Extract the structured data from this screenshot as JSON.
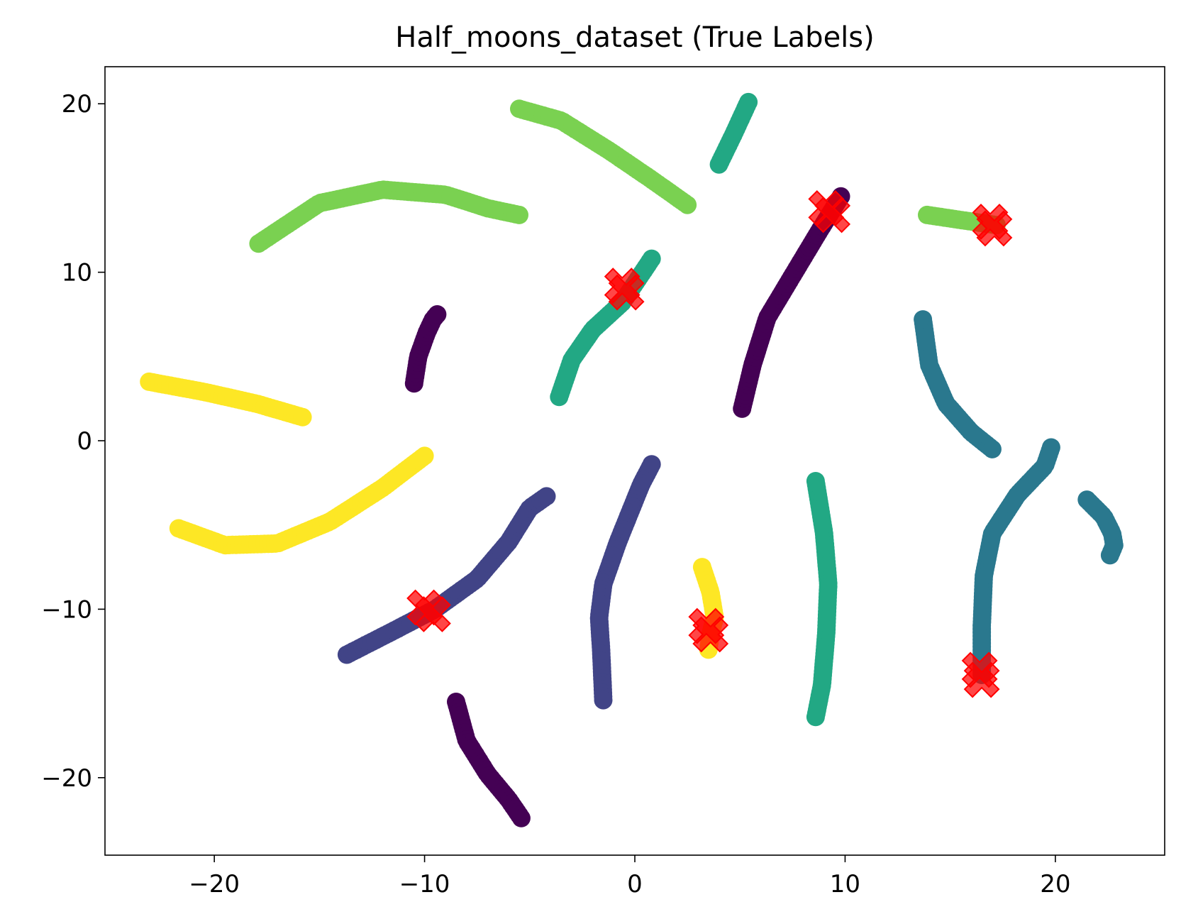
{
  "chart_data": {
    "type": "scatter",
    "title": "Half_moons_dataset (True Labels)",
    "xlabel": "",
    "ylabel": "",
    "xlim": [
      -25.2,
      25.2
    ],
    "ylim": [
      -24.6,
      22.2
    ],
    "xticks": [
      -20,
      -10,
      0,
      10,
      20
    ],
    "xtick_labels": [
      "−20",
      "−10",
      "0",
      "10",
      "20"
    ],
    "yticks": [
      -20,
      -10,
      0,
      10,
      20
    ],
    "ytick_labels": [
      "−20",
      "−10",
      "0",
      "10",
      "20"
    ],
    "grid": false,
    "legend": "none",
    "series": [
      {
        "color": "#440154",
        "segments": [
          [
            [
              -10.5,
              3.4
            ],
            [
              -10.3,
              5.0
            ],
            [
              -9.9,
              6.4
            ],
            [
              -9.6,
              7.2
            ],
            [
              -9.4,
              7.5
            ]
          ],
          [
            [
              5.1,
              1.9
            ],
            [
              5.6,
              4.5
            ],
            [
              6.3,
              7.3
            ],
            [
              7.5,
              9.8
            ],
            [
              8.8,
              12.5
            ],
            [
              9.8,
              14.5
            ]
          ],
          [
            [
              -8.5,
              -15.5
            ],
            [
              -8.0,
              -17.8
            ],
            [
              -7.0,
              -19.8
            ],
            [
              -6.0,
              -21.3
            ],
            [
              -5.4,
              -22.4
            ]
          ]
        ]
      },
      {
        "color": "#414487",
        "segments": [
          [
            [
              -13.7,
              -12.7
            ],
            [
              -11.5,
              -11.3
            ],
            [
              -9.5,
              -10.0
            ],
            [
              -7.5,
              -8.2
            ],
            [
              -6.0,
              -6.0
            ],
            [
              -5.0,
              -4.0
            ],
            [
              -4.2,
              -3.3
            ]
          ],
          [
            [
              0.8,
              -1.4
            ],
            [
              0.3,
              -2.6
            ],
            [
              -0.8,
              -6.0
            ],
            [
              -1.5,
              -8.5
            ],
            [
              -1.7,
              -10.5
            ],
            [
              -1.6,
              -12.5
            ],
            [
              -1.5,
              -15.4
            ]
          ]
        ]
      },
      {
        "color": "#2a788e",
        "segments": [
          [
            [
              13.7,
              7.2
            ],
            [
              14.0,
              4.5
            ],
            [
              14.8,
              2.2
            ],
            [
              16.0,
              0.5
            ],
            [
              17.0,
              -0.5
            ]
          ],
          [
            [
              16.5,
              -13.9
            ],
            [
              16.5,
              -11.0
            ],
            [
              16.6,
              -8.0
            ],
            [
              17.0,
              -5.5
            ],
            [
              18.2,
              -3.2
            ],
            [
              19.5,
              -1.5
            ],
            [
              19.8,
              -0.4
            ]
          ],
          [
            [
              21.5,
              -3.5
            ],
            [
              22.3,
              -4.5
            ],
            [
              22.7,
              -5.5
            ],
            [
              22.8,
              -6.2
            ],
            [
              22.6,
              -6.8
            ]
          ]
        ]
      },
      {
        "color": "#22a884",
        "segments": [
          [
            [
              -3.6,
              2.6
            ],
            [
              -3.0,
              4.8
            ],
            [
              -2.0,
              6.6
            ],
            [
              -0.6,
              8.2
            ],
            [
              0.8,
              10.8
            ]
          ],
          [
            [
              4.0,
              16.4
            ],
            [
              4.7,
              18.2
            ],
            [
              5.4,
              20.1
            ]
          ],
          [
            [
              8.6,
              -2.4
            ],
            [
              9.0,
              -5.5
            ],
            [
              9.2,
              -8.5
            ],
            [
              9.1,
              -11.5
            ],
            [
              8.9,
              -14.5
            ],
            [
              8.6,
              -16.4
            ]
          ]
        ]
      },
      {
        "color": "#7ad151",
        "segments": [
          [
            [
              -5.5,
              19.7
            ],
            [
              -3.5,
              19.0
            ],
            [
              -1.2,
              17.2
            ],
            [
              0.8,
              15.5
            ],
            [
              2.5,
              14.0
            ]
          ],
          [
            [
              -17.9,
              11.7
            ],
            [
              -15.0,
              14.1
            ],
            [
              -12.0,
              14.9
            ],
            [
              -9.0,
              14.6
            ],
            [
              -7.0,
              13.8
            ],
            [
              -5.5,
              13.4
            ]
          ],
          [
            [
              13.9,
              13.4
            ],
            [
              15.5,
              13.1
            ],
            [
              17.2,
              12.8
            ]
          ]
        ]
      },
      {
        "color": "#fde725",
        "segments": [
          [
            [
              -23.1,
              3.5
            ],
            [
              -20.5,
              2.9
            ],
            [
              -18.0,
              2.2
            ],
            [
              -15.8,
              1.4
            ]
          ],
          [
            [
              -21.7,
              -5.2
            ],
            [
              -19.5,
              -6.2
            ],
            [
              -17.0,
              -6.1
            ],
            [
              -14.5,
              -4.8
            ],
            [
              -12.0,
              -2.8
            ],
            [
              -10.0,
              -0.9
            ]
          ],
          [
            [
              3.2,
              -7.5
            ],
            [
              3.6,
              -9.0
            ],
            [
              3.8,
              -10.5
            ],
            [
              3.6,
              -11.5
            ],
            [
              3.5,
              -12.4
            ]
          ]
        ]
      }
    ],
    "markers": {
      "shape": "X",
      "color": "#ff0000",
      "points": [
        [
          -10.0,
          -9.9
        ],
        [
          -9.6,
          -10.3
        ],
        [
          -0.6,
          9.2
        ],
        [
          -0.4,
          8.8
        ],
        [
          9.1,
          13.8
        ],
        [
          9.4,
          13.4
        ],
        [
          16.9,
          13.0
        ],
        [
          17.1,
          12.6
        ],
        [
          3.4,
          -11.0
        ],
        [
          3.6,
          -11.5
        ],
        [
          16.4,
          -13.6
        ],
        [
          16.5,
          -14.2
        ]
      ]
    }
  }
}
